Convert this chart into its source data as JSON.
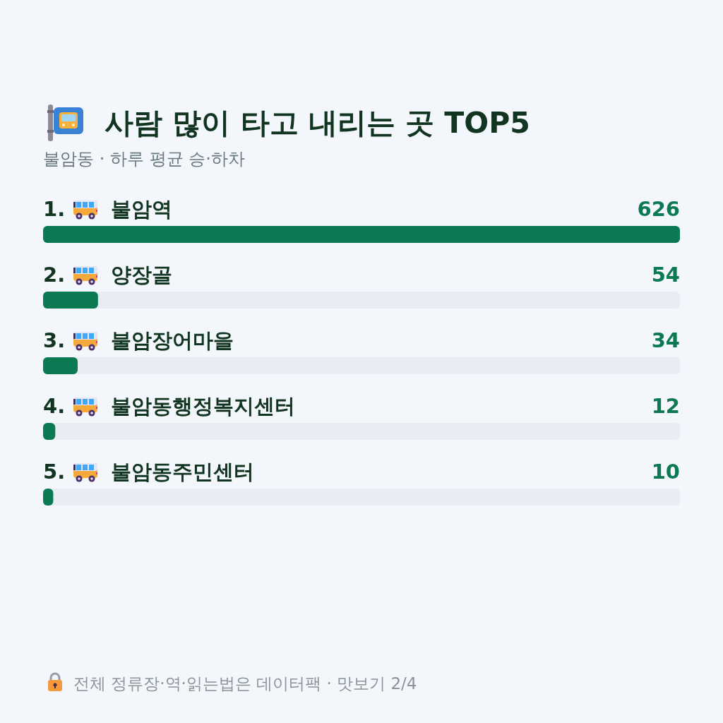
{
  "chart_data": {
    "type": "bar",
    "orientation": "horizontal",
    "title": "사람 많이 타고 내리는 곳 TOP5",
    "subtitle": "불암동 · 하루 평균 승·하차",
    "categories": [
      "1. 불암역",
      "2. 양장골",
      "3. 불암장어마을",
      "4. 불암동행정복지센터",
      "5. 불암동주민센터"
    ],
    "values": [
      626,
      54,
      34,
      12,
      10
    ],
    "color": "#0b7a52",
    "data_labels": true,
    "annotations": [
      "전체 정류장·역·읽는법은 데이터팩 · 맛보기 2/4"
    ]
  }
}
